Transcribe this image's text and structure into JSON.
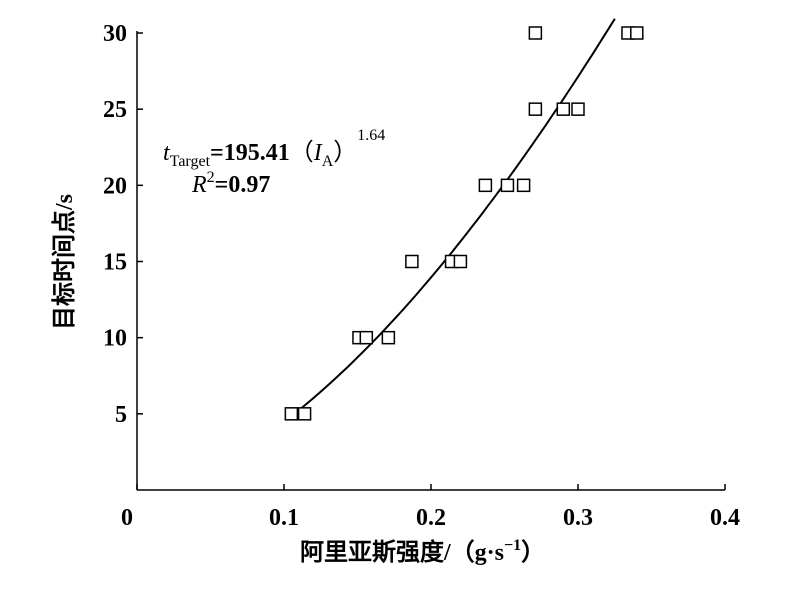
{
  "chart_data": {
    "type": "scatter",
    "xlabel": "阿里亚斯强度/（g·s",
    "xlabel_sup": "−1",
    "xlabel_close": "）",
    "ylabel": "目标时间点/s",
    "x": [
      0.105,
      0.114,
      0.151,
      0.156,
      0.171,
      0.187,
      0.214,
      0.22,
      0.237,
      0.252,
      0.263,
      0.271,
      0.29,
      0.3,
      0.271,
      0.334,
      0.34
    ],
    "values": [
      5,
      5,
      10,
      10,
      10,
      15,
      15,
      15,
      20,
      20,
      20,
      25,
      25,
      25,
      30,
      30,
      30
    ],
    "color": "#000000",
    "xlim": [
      0,
      0.4
    ],
    "xticks": [
      0,
      0.1,
      0.2,
      0.3,
      0.4
    ],
    "ylim": [
      0,
      30
    ],
    "yticks": [
      5,
      10,
      15,
      20,
      25,
      30
    ],
    "fit": {
      "x_range": [
        0.11,
        0.325
      ]
    },
    "annotation": {
      "lhs": "t",
      "lhs_sub": "Target",
      "eq": "=",
      "coefficient": 195.41,
      "open": "（",
      "var": "I",
      "var_sub": "A",
      "close": "）",
      "exponent": 1.64,
      "r2_label": "R",
      "r2_sup": "2",
      "r2_eq": "=",
      "r2": 0.97
    }
  }
}
